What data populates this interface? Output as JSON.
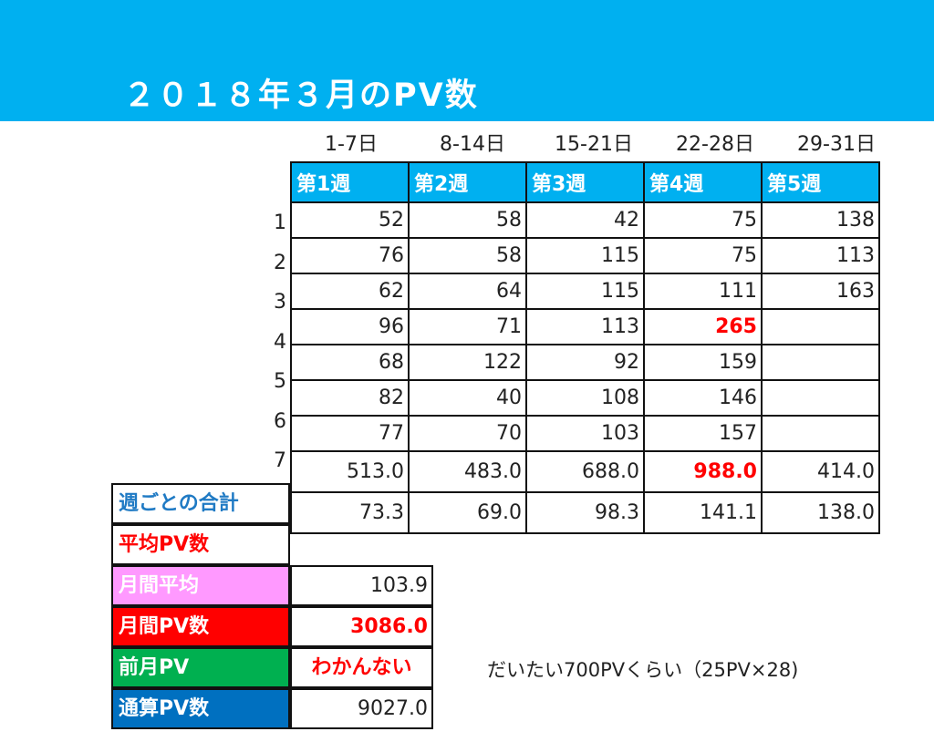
{
  "title": "２０１８年３月のPV数",
  "date_ranges": [
    "1-7日",
    "8-14日",
    "15-21日",
    "22-28日",
    "29-31日"
  ],
  "weeks": [
    "第1週",
    "第2週",
    "第3週",
    "第4週",
    "第5週"
  ],
  "row_numbers": [
    "1",
    "2",
    "3",
    "4",
    "5",
    "6",
    "7"
  ],
  "rows": [
    [
      "52",
      "58",
      "42",
      "75",
      "138"
    ],
    [
      "76",
      "58",
      "115",
      "75",
      "113"
    ],
    [
      "62",
      "64",
      "115",
      "111",
      "163"
    ],
    [
      "96",
      "71",
      "113",
      "265",
      ""
    ],
    [
      "68",
      "122",
      "92",
      "159",
      ""
    ],
    [
      "82",
      "40",
      "108",
      "146",
      ""
    ],
    [
      "77",
      "70",
      "103",
      "157",
      ""
    ]
  ],
  "weekly_total": {
    "label": "週ごとの合計",
    "values": [
      "513.0",
      "483.0",
      "688.0",
      "988.0",
      "414.0"
    ]
  },
  "average": {
    "label": "平均PV数",
    "values": [
      "73.3",
      "69.0",
      "98.3",
      "141.1",
      "138.0"
    ]
  },
  "monthly_average": {
    "label": "月間平均",
    "value": "103.9"
  },
  "monthly_pv": {
    "label": "月間PV数",
    "value": "3086.0"
  },
  "prev_month": {
    "label": "前月PV",
    "value": "わかんない"
  },
  "cumulative": {
    "label": "通算PV数",
    "value": "9027.0"
  },
  "note": "だいたい700PVくらい（25PV×28)",
  "colors": {
    "banner": "#00b0f0",
    "weekly_total_label": "#1f7ac4",
    "average_label": "#ff0000",
    "monthly_average_bg": "#ff99ff",
    "monthly_pv_bg": "#ff0000",
    "prev_month_bg": "#00b050",
    "cumulative_bg": "#0070c0",
    "highlight": "#ff0000"
  }
}
